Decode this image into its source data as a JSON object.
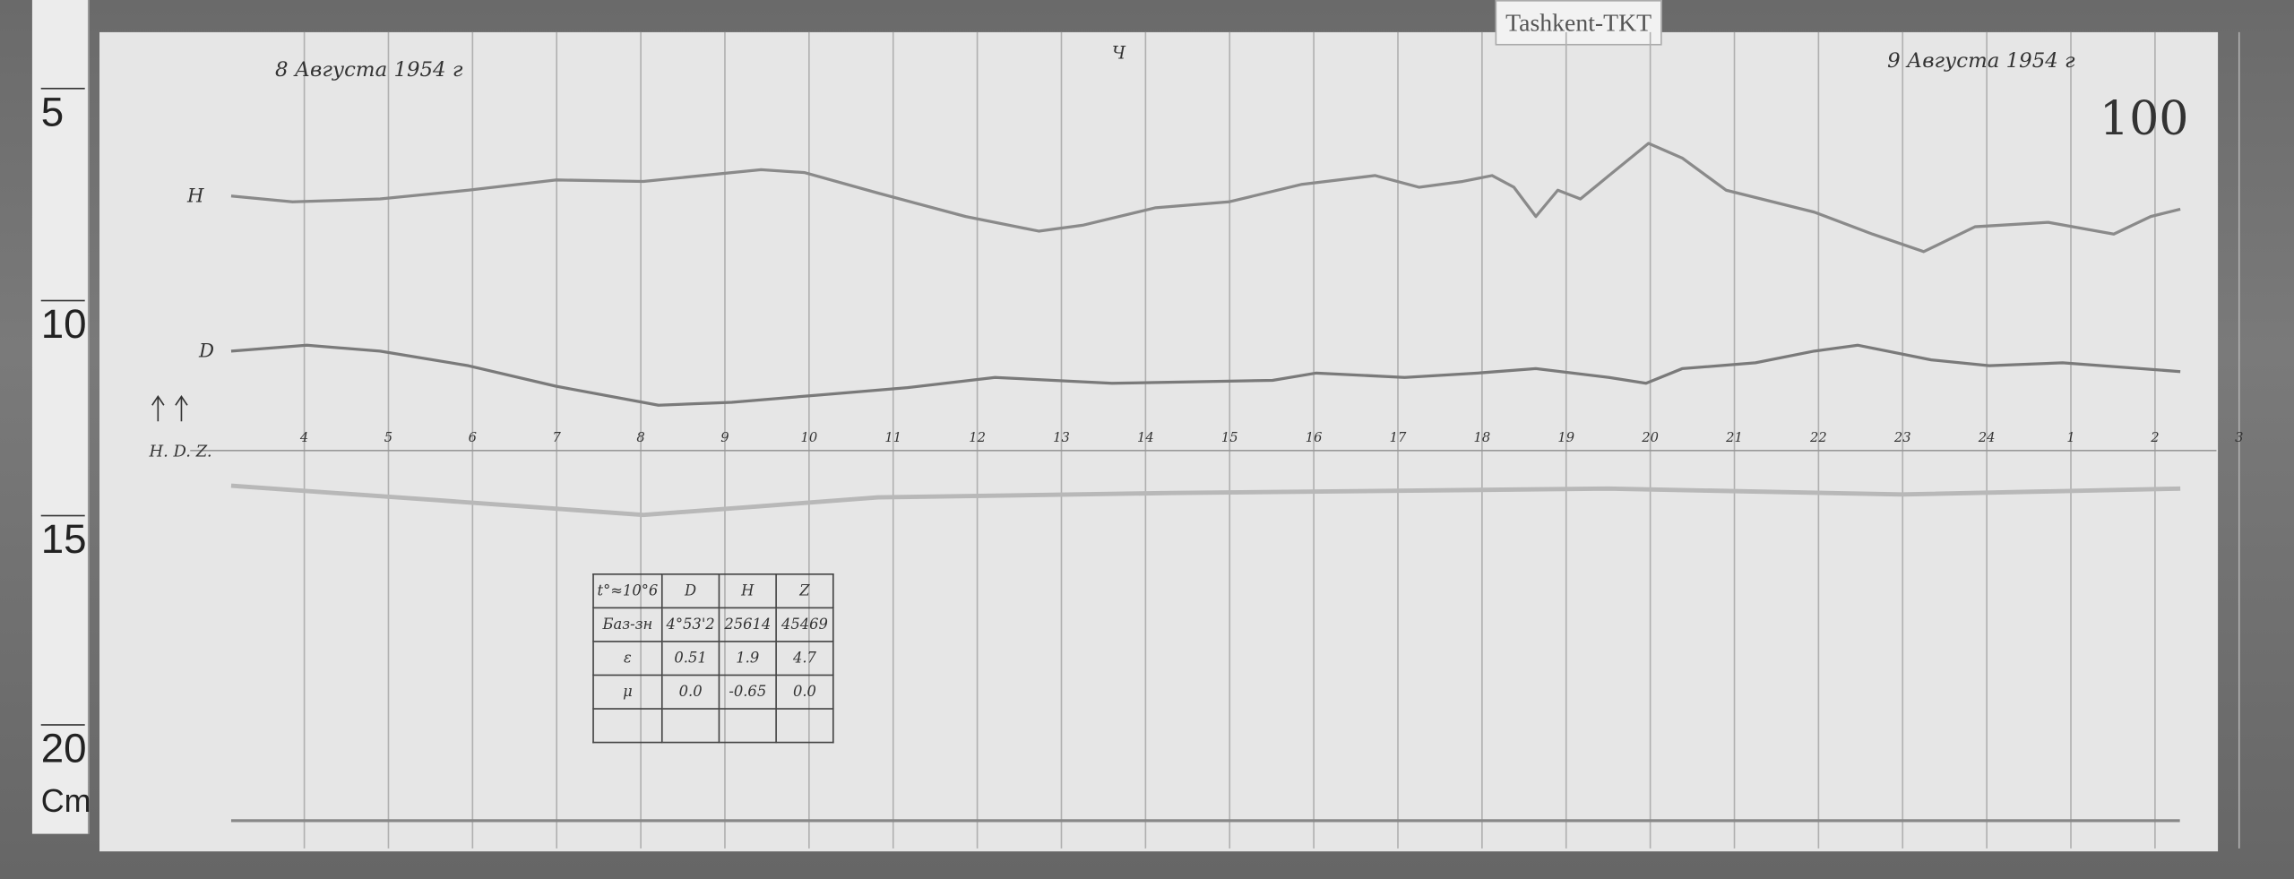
{
  "station_label": "Tashkent-TKT",
  "ruler": {
    "marks": [
      "5",
      "10",
      "15",
      "20"
    ],
    "unit": "Cm"
  },
  "annotations": {
    "start_date": "8 Августа 1954 г",
    "end_date": "9 Августа 1954 г",
    "sheet_number": "100",
    "top_mark": "Ч"
  },
  "trace_labels": {
    "H": "H",
    "D": "D",
    "axis_legend": "H. D. Z."
  },
  "table": {
    "header": [
      "t°≈10°6",
      "D",
      "H",
      "Z"
    ],
    "rows": [
      [
        "Баз-зн",
        "4°53'2",
        "25614",
        "45469"
      ],
      [
        "ε",
        "0.51",
        "1.9",
        "4.7"
      ],
      [
        "μ",
        "0.0",
        "-0.65",
        "0.0"
      ],
      [
        "",
        "",
        "",
        ""
      ]
    ]
  },
  "chart_data": {
    "type": "line",
    "title": "",
    "xlabel": "",
    "ylabel": "",
    "x_unit_note": "hours of record; ticks after 24 printed as 1, 2, 3",
    "x_ticks": [
      {
        "h": 4,
        "label": "4"
      },
      {
        "h": 5,
        "label": "5"
      },
      {
        "h": 6,
        "label": "6"
      },
      {
        "h": 7,
        "label": "7"
      },
      {
        "h": 8,
        "label": "8"
      },
      {
        "h": 9,
        "label": "9"
      },
      {
        "h": 10,
        "label": "10"
      },
      {
        "h": 11,
        "label": "11"
      },
      {
        "h": 12,
        "label": "12"
      },
      {
        "h": 13,
        "label": "13"
      },
      {
        "h": 14,
        "label": "14"
      },
      {
        "h": 15,
        "label": "15"
      },
      {
        "h": 16,
        "label": "16"
      },
      {
        "h": 17,
        "label": "17"
      },
      {
        "h": 18,
        "label": "18"
      },
      {
        "h": 19,
        "label": "19"
      },
      {
        "h": 20,
        "label": "20"
      },
      {
        "h": 21,
        "label": "21"
      },
      {
        "h": 22,
        "label": "22"
      },
      {
        "h": 23,
        "label": "23"
      },
      {
        "h": 24,
        "label": "24"
      },
      {
        "h": 25,
        "label": "1"
      },
      {
        "h": 26,
        "label": "2"
      },
      {
        "h": 27,
        "label": "3"
      }
    ],
    "grid": true,
    "series": [
      {
        "name": "H",
        "color": "#8a8a8a",
        "x": [
          3.13,
          3.86,
          4.9,
          5.95,
          6.99,
          8.03,
          9.43,
          9.95,
          10.82,
          11.86,
          12.73,
          13.25,
          14.12,
          14.99,
          15.86,
          16.73,
          17.25,
          17.77,
          18.12,
          18.38,
          18.64,
          18.9,
          19.17,
          19.51,
          19.98,
          20.38,
          20.9,
          21.95,
          22.64,
          23.25,
          23.86,
          24.73,
          25.51,
          25.95,
          26.3
        ],
        "y": [
          66,
          62,
          64,
          70,
          77,
          76,
          84,
          82,
          68,
          52,
          42,
          46,
          58,
          62,
          74,
          80,
          72,
          76,
          80,
          72,
          52,
          70,
          64,
          80,
          102,
          92,
          70,
          55,
          40,
          28,
          45,
          48,
          40,
          52,
          57
        ]
      },
      {
        "name": "D",
        "color": "#7a7a7a",
        "x": [
          3.13,
          4.03,
          4.9,
          5.95,
          6.99,
          8.21,
          9.08,
          10.12,
          11.17,
          12.21,
          13.6,
          15.51,
          16.03,
          17.08,
          17.95,
          18.64,
          19.51,
          19.95,
          20.38,
          21.25,
          21.95,
          22.47,
          23.34,
          24.03,
          24.9,
          26.3
        ],
        "y": [
          60,
          64,
          60,
          50,
          36,
          23,
          25,
          30,
          35,
          42,
          38,
          40,
          45,
          42,
          45,
          48,
          42,
          38,
          48,
          52,
          60,
          64,
          54,
          50,
          52,
          46
        ]
      },
      {
        "name": "Z",
        "color": "#b8b8b8",
        "x": [
          3.13,
          5.6,
          8.03,
          9.43,
          10.82,
          14.3,
          19.51,
          22.99,
          26.3
        ],
        "y": [
          68,
          58,
          48,
          54,
          60,
          63,
          66,
          62,
          66
        ]
      }
    ]
  }
}
